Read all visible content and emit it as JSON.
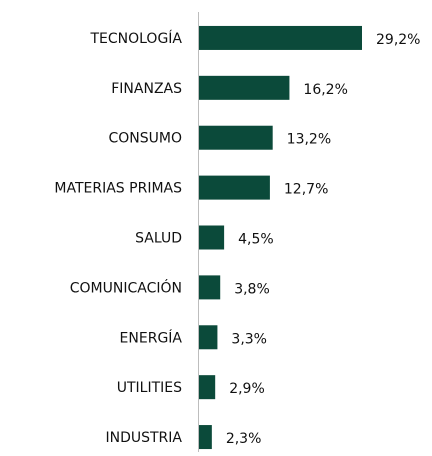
{
  "chart_data": {
    "type": "hbar",
    "categories": [
      "TECNOLOGÍA",
      "FINANZAS",
      "CONSUMO",
      "MATERIAS PRIMAS",
      "SALUD",
      "COMUNICACIÓN",
      "ENERGÍA",
      "UTILITIES",
      "INDUSTRIA"
    ],
    "values": [
      29.2,
      16.2,
      13.2,
      12.7,
      4.5,
      3.8,
      3.3,
      2.9,
      2.3
    ],
    "value_labels": [
      "29,2%",
      "16,2%",
      "13,2%",
      "12,7%",
      "4,5%",
      "3,8%",
      "3,3%",
      "2,9%",
      "2,3%"
    ],
    "color": "#0b4a3a"
  }
}
